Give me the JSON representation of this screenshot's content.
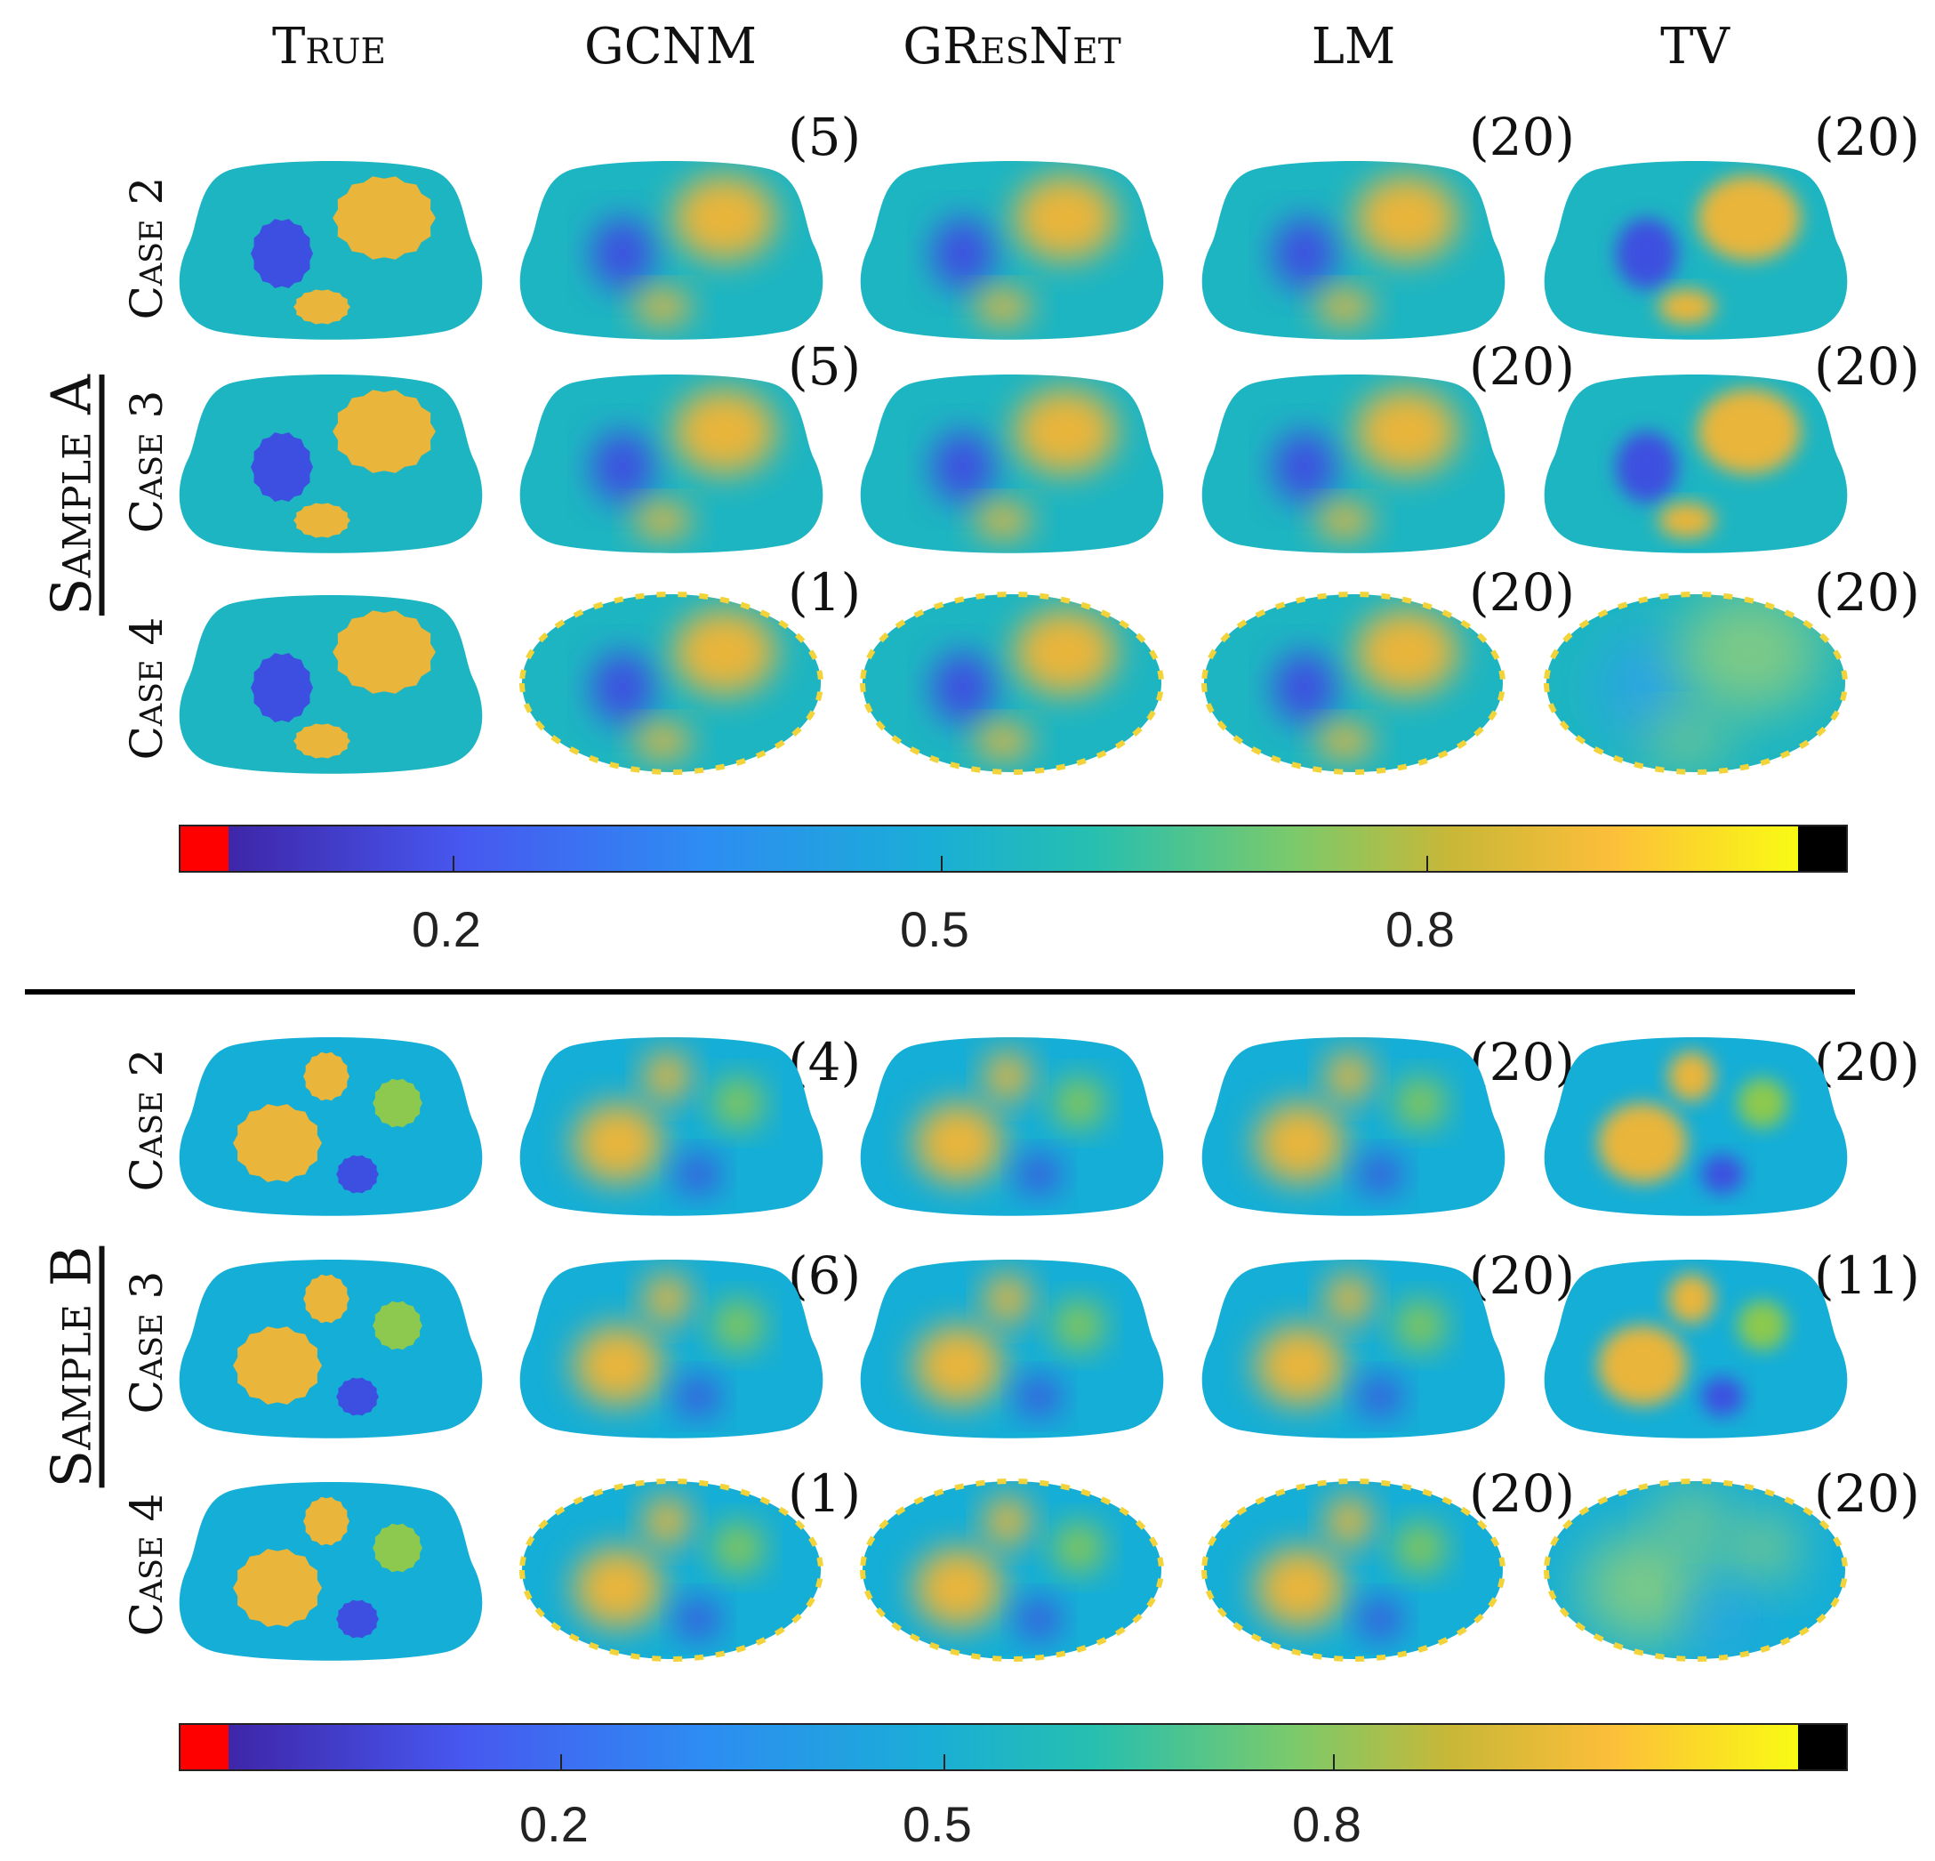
{
  "columns": [
    "True",
    "GCNM",
    "GResNet",
    "LM",
    "TV"
  ],
  "samples": [
    {
      "label": "Sample A",
      "cases": [
        {
          "label": "Case 2",
          "iterations": [
            "(5)",
            "(20)",
            "(20)"
          ]
        },
        {
          "label": "Case 3",
          "iterations": [
            "(5)",
            "(20)",
            "(20)"
          ]
        },
        {
          "label": "Case 4",
          "iterations": [
            "(1)",
            "(20)",
            "(20)"
          ]
        }
      ],
      "colorbar": {
        "ticks": [
          "0.2",
          "0.5",
          "0.8"
        ]
      }
    },
    {
      "label": "Sample B",
      "cases": [
        {
          "label": "Case 2",
          "iterations": [
            "(4)",
            "(20)",
            "(20)"
          ]
        },
        {
          "label": "Case 3",
          "iterations": [
            "(6)",
            "(20)",
            "(11)"
          ]
        },
        {
          "label": "Case 4",
          "iterations": [
            "(1)",
            "(20)",
            "(20)"
          ]
        }
      ],
      "colorbar": {
        "ticks": [
          "0.2",
          "0.5",
          "0.8"
        ]
      }
    }
  ],
  "colors": {
    "background": "#1db5c2",
    "background_b": "#15aed6",
    "low_blob": "#3d4fe0",
    "high_blob": "#e9b53a",
    "green_blob": "#8cc94e",
    "under_range": "#ff0000",
    "over_range": "#000000"
  }
}
